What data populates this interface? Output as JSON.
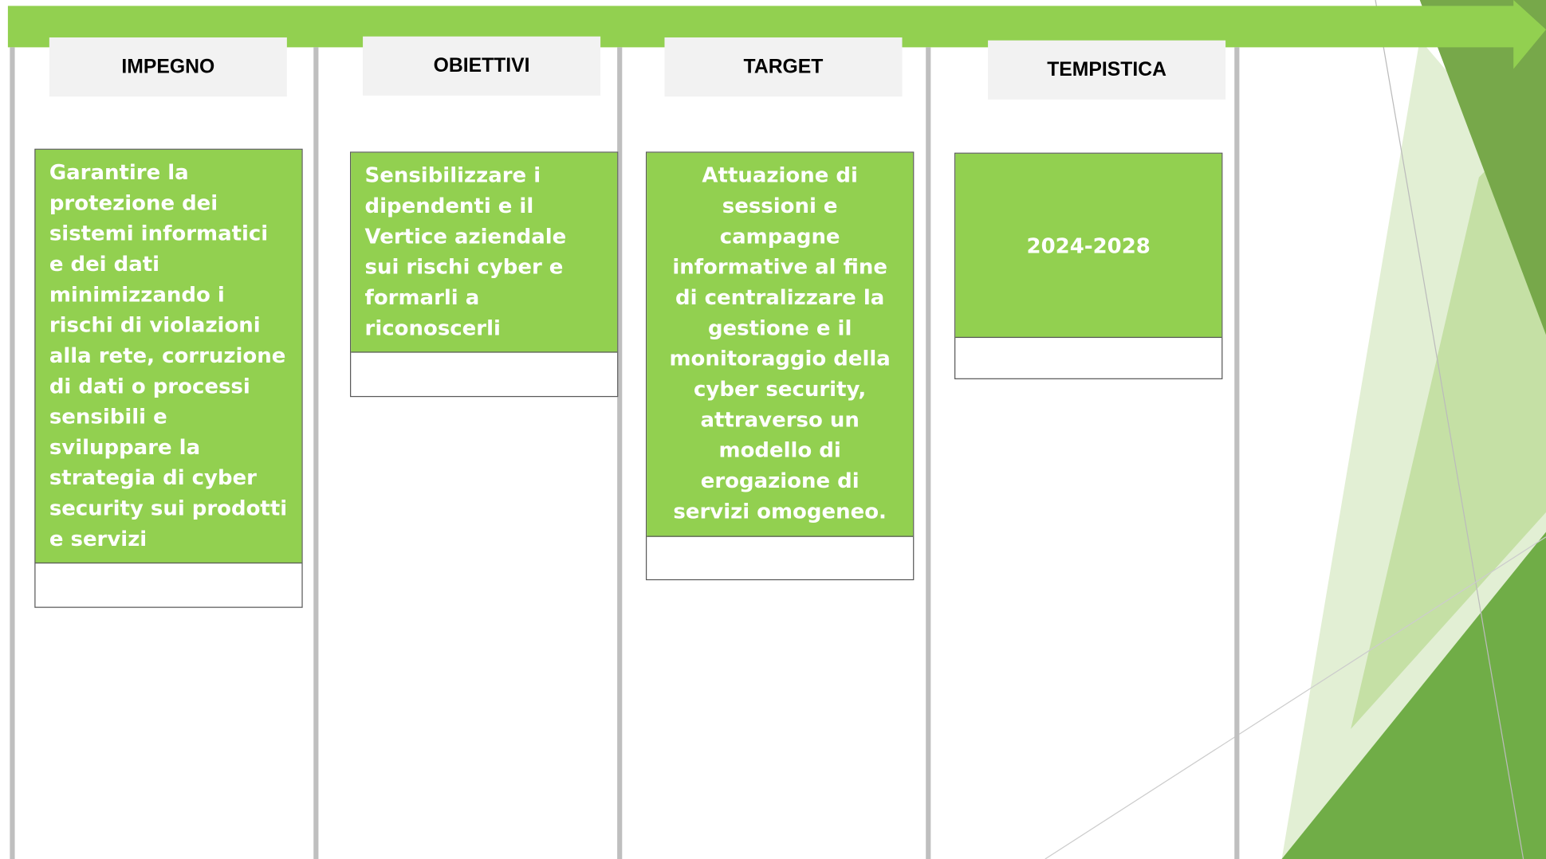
{
  "columns": [
    {
      "header": "IMPEGNO",
      "text": "Garantire la protezione dei sistemi informatici e dei dati minimizzando i rischi di violazioni alla rete, corruzione di dati o processi sensibili e sviluppare la strategia di cyber security sui prodotti e servizi"
    },
    {
      "header": "OBIETTIVI",
      "text": "Sensibilizzare i dipendenti e il Vertice aziendale sui rischi cyber e formarli a riconoscerli"
    },
    {
      "header": "TARGET",
      "text": "Attuazione di sessioni e campagne informative al fine di centralizzare la gestione e il monitoraggio della cyber security, attraverso un modello di erogazione di servizi omogeneo."
    },
    {
      "header": "TEMPISTICA",
      "text": "2024-2028"
    }
  ]
}
